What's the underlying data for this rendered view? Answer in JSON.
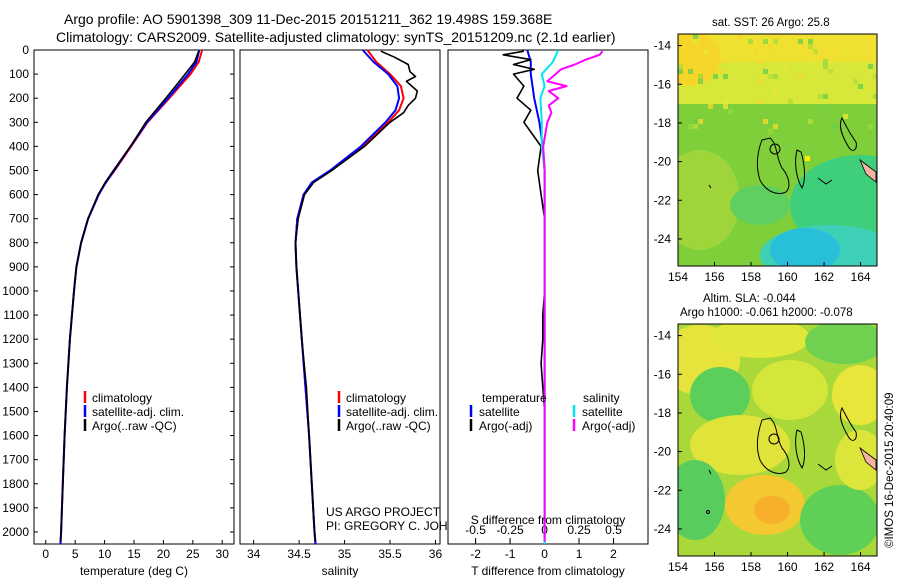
{
  "header": {
    "title_line1": "Argo profile: AO 5901398_309 11-Dec-2015 20151211_362 19.498S 159.368E",
    "title_line2": "Climatology: CARS2009. Satellite-adjusted climatology: synTS_20151209.nc (2.1d earlier)"
  },
  "colors": {
    "climatology": "#ff0000",
    "satellite": "#0000ff",
    "argo": "#000000",
    "satellite_salinity": "#00e5ee",
    "argo_salinity": "#ff00ff"
  },
  "depth_ticks": [
    "0",
    "100",
    "200",
    "300",
    "400",
    "500",
    "600",
    "700",
    "800",
    "900",
    "1000",
    "1100",
    "1200",
    "1300",
    "1400",
    "1500",
    "1600",
    "1700",
    "1800",
    "1900",
    "2000"
  ],
  "temperature_panel": {
    "xlabel": "temperature (deg C)",
    "xticks": [
      "0",
      "5",
      "10",
      "15",
      "20",
      "25",
      "30"
    ],
    "xlim": [
      -2,
      32
    ],
    "legend": [
      "climatology",
      "satellite-adj. clim.",
      "Argo(..raw -QC)"
    ]
  },
  "salinity_panel": {
    "xlabel": "salinity",
    "xticks": [
      "34",
      "34.5",
      "35",
      "35.5",
      "36"
    ],
    "xlim": [
      33.85,
      36.05
    ],
    "legend": [
      "climatology",
      "satellite-adj. clim.",
      "Argo(..raw -QC)"
    ],
    "credit_line1": "US ARGO PROJECT",
    "credit_line2": "PI: GREGORY C. JOHNSON"
  },
  "difference_panel": {
    "top_label": "S difference from climatology",
    "top_ticks": [
      "-0.5",
      "-0.25",
      "0",
      "0.25",
      "0.5"
    ],
    "bottom_label": "T difference from climatology",
    "bottom_ticks": [
      "-2",
      "-1",
      "0",
      "1",
      "2"
    ],
    "legend_temperature_title": "temperature",
    "legend_salinity_title": "salinity",
    "legend_temp_items": [
      "satellite",
      "Argo(-adj)"
    ],
    "legend_sal_items": [
      "satellite",
      "Argo(-adj)"
    ]
  },
  "sst_map": {
    "title": "sat. SST: 26 Argo: 25.8",
    "yticks": [
      "-14",
      "-16",
      "-18",
      "-20",
      "-22",
      "-24"
    ],
    "xticks": [
      "154",
      "156",
      "158",
      "160",
      "162",
      "164"
    ]
  },
  "sla_map": {
    "title_line1": "Altim. SLA: -0.044",
    "title_line2": "Argo h1000: -0.061 h2000: -0.078",
    "yticks": [
      "-14",
      "-16",
      "-18",
      "-20",
      "-22",
      "-24"
    ],
    "xticks": [
      "154",
      "156",
      "158",
      "160",
      "162",
      "164"
    ]
  },
  "watermark": "©IMOS 16-Dec-2015 20:40:09",
  "chart_data": [
    {
      "type": "line",
      "title": "",
      "xlabel": "temperature (deg C)",
      "ylabel": "",
      "xlim": [
        -2,
        32
      ],
      "ylim": [
        2050,
        0
      ],
      "series": [
        {
          "name": "climatology",
          "depth": [
            0,
            50,
            100,
            200,
            300,
            400,
            500,
            550,
            600,
            700,
            800,
            900,
            1000,
            1200,
            1400,
            1600,
            1800,
            2000,
            2050
          ],
          "values": [
            26.6,
            26.0,
            24.6,
            21.0,
            17.3,
            14.5,
            11.7,
            10.2,
            9.0,
            7.2,
            6.0,
            5.2,
            4.8,
            4.1,
            3.6,
            3.2,
            2.9,
            2.6,
            2.5
          ]
        },
        {
          "name": "satellite-adj. clim.",
          "depth": [
            0,
            50,
            100,
            200,
            300,
            400,
            500,
            550,
            600,
            700,
            800,
            900,
            1000,
            1200,
            1400,
            1600,
            1800,
            2000,
            2050
          ],
          "values": [
            26.1,
            25.6,
            24.2,
            20.8,
            17.2,
            14.4,
            11.6,
            10.2,
            9.0,
            7.2,
            6.0,
            5.2,
            4.8,
            4.1,
            3.6,
            3.2,
            2.9,
            2.6,
            2.5
          ]
        },
        {
          "name": "Argo(..raw -QC)",
          "depth": [
            5,
            50,
            100,
            200,
            300,
            400,
            500,
            550,
            600,
            700,
            800,
            900,
            1000,
            1200,
            1400,
            1600,
            1800,
            2000,
            2040
          ],
          "values": [
            26.0,
            25.3,
            23.7,
            20.4,
            17.0,
            14.4,
            11.5,
            10.1,
            8.9,
            7.2,
            6.0,
            5.2,
            4.8,
            4.1,
            3.6,
            3.2,
            2.9,
            2.6,
            2.5
          ]
        }
      ]
    },
    {
      "type": "line",
      "title": "",
      "xlabel": "salinity",
      "ylabel": "",
      "xlim": [
        33.85,
        36.05
      ],
      "ylim": [
        2050,
        0
      ],
      "series": [
        {
          "name": "climatology",
          "depth": [
            0,
            50,
            100,
            150,
            200,
            250,
            300,
            400,
            500,
            550,
            600,
            700,
            800,
            900,
            1000,
            1200,
            1400,
            1600,
            1800,
            2000,
            2050
          ],
          "values": [
            35.25,
            35.35,
            35.5,
            35.62,
            35.65,
            35.6,
            35.48,
            35.2,
            34.85,
            34.65,
            34.55,
            34.48,
            34.46,
            34.47,
            34.49,
            34.53,
            34.57,
            34.61,
            34.64,
            34.67,
            34.68
          ]
        },
        {
          "name": "satellite-adj. clim.",
          "depth": [
            0,
            50,
            100,
            150,
            200,
            250,
            300,
            400,
            500,
            550,
            600,
            700,
            800,
            900,
            1000,
            1200,
            1400,
            1600,
            1800,
            2000,
            2050
          ],
          "values": [
            35.2,
            35.32,
            35.48,
            35.58,
            35.6,
            35.56,
            35.45,
            35.18,
            34.84,
            34.64,
            34.55,
            34.48,
            34.46,
            34.47,
            34.49,
            34.53,
            34.57,
            34.61,
            34.64,
            34.67,
            34.68
          ]
        },
        {
          "name": "Argo(..raw -QC)",
          "depth": [
            5,
            30,
            60,
            90,
            110,
            130,
            150,
            170,
            200,
            230,
            260,
            300,
            400,
            500,
            550,
            600,
            700,
            800,
            900,
            1000,
            1200,
            1400,
            1600,
            1800,
            2000,
            2040
          ],
          "values": [
            35.4,
            35.55,
            35.7,
            35.72,
            35.78,
            35.68,
            35.74,
            35.8,
            35.78,
            35.7,
            35.65,
            35.5,
            35.22,
            34.86,
            34.66,
            34.56,
            34.49,
            34.46,
            34.47,
            34.49,
            34.53,
            34.58,
            34.61,
            34.64,
            34.67,
            34.68
          ]
        }
      ]
    },
    {
      "type": "line",
      "title": "",
      "xlabel": "T difference from climatology",
      "ylabel": "",
      "xlim": [
        -2.8,
        3.0
      ],
      "ylim": [
        2050,
        0
      ],
      "series": [
        {
          "name": "temperature satellite",
          "depth": [
            0,
            50,
            100,
            200,
            300,
            400,
            500,
            600,
            700,
            800,
            1000,
            1200,
            1400,
            1600,
            1800,
            2000,
            2050
          ],
          "values": [
            -0.5,
            -0.4,
            -0.4,
            -0.3,
            -0.15,
            -0.05,
            0,
            0,
            0,
            0,
            0,
            0,
            0,
            0,
            0,
            0,
            0
          ]
        },
        {
          "name": "temperature Argo(-adj)",
          "depth": [
            5,
            20,
            40,
            60,
            80,
            100,
            150,
            200,
            250,
            300,
            400,
            500,
            550,
            600,
            700,
            800,
            900,
            1000,
            1100,
            1200,
            1300,
            1400,
            1500,
            1600,
            1800,
            2000,
            2040
          ],
          "values": [
            -0.6,
            -1.2,
            -0.4,
            -0.9,
            -0.3,
            -0.9,
            -0.6,
            -0.8,
            -0.4,
            -0.6,
            -0.1,
            -0.2,
            -0.15,
            -0.1,
            0,
            0,
            0,
            0,
            -0.05,
            -0.05,
            -0.1,
            -0.05,
            0,
            0,
            0,
            0,
            0
          ]
        }
      ]
    },
    {
      "type": "line",
      "title": "",
      "xlabel": "S difference from climatology",
      "ylabel": "",
      "xlim": [
        -0.7,
        0.75
      ],
      "ylim": [
        2050,
        0
      ],
      "series": [
        {
          "name": "salinity satellite",
          "depth": [
            0,
            50,
            100,
            150,
            200,
            300,
            400,
            500,
            600,
            700,
            800,
            1000,
            1200,
            1400,
            1600,
            1800,
            2000,
            2050
          ],
          "values": [
            0.1,
            0.06,
            -0.02,
            0,
            -0.03,
            -0.02,
            -0.02,
            0,
            0,
            0,
            0,
            0,
            0,
            0,
            0,
            0,
            0,
            0
          ]
        },
        {
          "name": "salinity Argo(-adj)",
          "depth": [
            5,
            20,
            40,
            60,
            80,
            100,
            130,
            150,
            170,
            200,
            230,
            260,
            300,
            400,
            500,
            550,
            600,
            700,
            800,
            900,
            1000,
            1200,
            1400,
            1600,
            1800,
            2000,
            2040
          ],
          "values": [
            0.42,
            0.4,
            0.3,
            0.22,
            0.12,
            0.08,
            0.02,
            0.16,
            0.03,
            0.1,
            0.03,
            0.05,
            0.02,
            -0.01,
            0,
            0,
            0,
            0,
            0,
            0,
            0,
            0,
            0,
            0,
            0,
            0,
            0
          ]
        }
      ]
    }
  ]
}
